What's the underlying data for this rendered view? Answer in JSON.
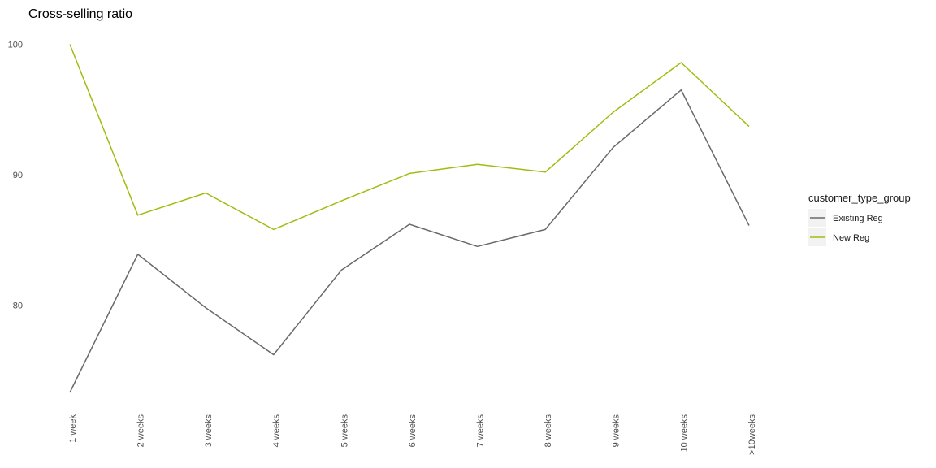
{
  "chart_data": {
    "type": "line",
    "title": "Cross-selling ratio",
    "xlabel": "",
    "ylabel": "",
    "categories": [
      "1 week",
      "2 weeks",
      "3 weeks",
      "4 weeks",
      "5 weeks",
      "6 weeks",
      "7 weeks",
      "8 weeks",
      "9 weeks",
      "10 weeks",
      ">10weeks"
    ],
    "ylim": [
      73,
      100.5
    ],
    "yticks": [
      80,
      90,
      100
    ],
    "grid": false,
    "legend": {
      "title": "customer_type_group",
      "position": "right"
    },
    "series": [
      {
        "name": "Existing Reg",
        "color": "#696969",
        "values": [
          73.3,
          83.9,
          79.8,
          76.2,
          82.7,
          86.2,
          84.5,
          85.8,
          92.1,
          96.5,
          86.1
        ]
      },
      {
        "name": "New Reg",
        "color": "#a3bb0e",
        "values": [
          100.0,
          86.9,
          88.6,
          85.8,
          88.0,
          90.1,
          90.8,
          90.2,
          94.8,
          98.6,
          93.7
        ]
      }
    ]
  }
}
